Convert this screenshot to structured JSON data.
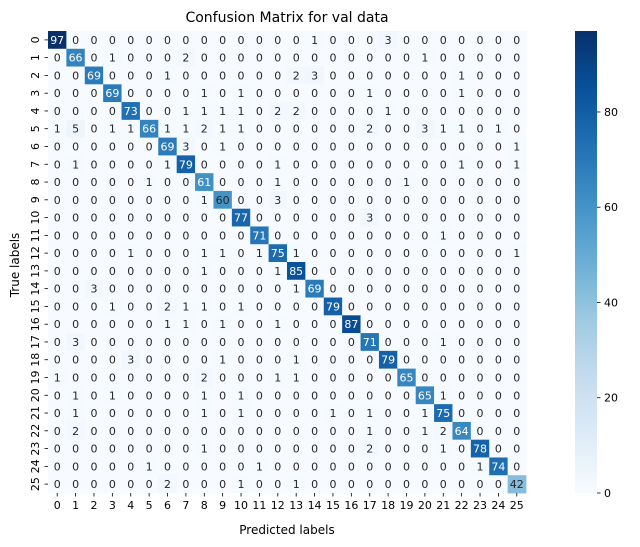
{
  "chart_data": {
    "type": "heatmap",
    "title": "Confusion Matrix for val data",
    "xlabel": "Predicted labels",
    "ylabel": "True labels",
    "x_categories": [
      "0",
      "1",
      "2",
      "3",
      "4",
      "5",
      "6",
      "7",
      "8",
      "9",
      "10",
      "11",
      "12",
      "13",
      "14",
      "15",
      "16",
      "17",
      "18",
      "19",
      "20",
      "21",
      "22",
      "23",
      "24",
      "25"
    ],
    "y_categories": [
      "0",
      "1",
      "2",
      "3",
      "4",
      "5",
      "6",
      "7",
      "8",
      "9",
      "10",
      "11",
      "12",
      "13",
      "14",
      "15",
      "16",
      "17",
      "18",
      "19",
      "20",
      "21",
      "22",
      "23",
      "24",
      "25"
    ],
    "values": [
      [
        97,
        0,
        0,
        0,
        0,
        0,
        0,
        0,
        0,
        0,
        0,
        0,
        0,
        0,
        1,
        0,
        0,
        0,
        3,
        0,
        0,
        0,
        0,
        0,
        0,
        0
      ],
      [
        0,
        66,
        0,
        1,
        0,
        0,
        0,
        2,
        0,
        0,
        0,
        0,
        0,
        0,
        0,
        0,
        0,
        0,
        0,
        0,
        1,
        0,
        0,
        0,
        0,
        0
      ],
      [
        0,
        0,
        69,
        0,
        0,
        0,
        1,
        0,
        0,
        0,
        0,
        0,
        0,
        2,
        3,
        0,
        0,
        0,
        0,
        0,
        0,
        0,
        1,
        0,
        0,
        0
      ],
      [
        0,
        0,
        0,
        69,
        0,
        0,
        0,
        0,
        1,
        0,
        1,
        0,
        0,
        0,
        0,
        0,
        0,
        1,
        0,
        0,
        0,
        0,
        1,
        0,
        0,
        0
      ],
      [
        0,
        0,
        0,
        0,
        73,
        0,
        0,
        1,
        1,
        1,
        1,
        0,
        2,
        2,
        0,
        0,
        0,
        0,
        1,
        0,
        0,
        0,
        0,
        0,
        0,
        0
      ],
      [
        1,
        5,
        0,
        1,
        1,
        66,
        1,
        1,
        2,
        1,
        1,
        0,
        0,
        0,
        0,
        0,
        0,
        2,
        0,
        0,
        3,
        1,
        1,
        0,
        1,
        0
      ],
      [
        0,
        0,
        0,
        0,
        0,
        0,
        69,
        3,
        0,
        1,
        0,
        0,
        0,
        0,
        0,
        0,
        0,
        0,
        0,
        0,
        0,
        0,
        0,
        0,
        0,
        1
      ],
      [
        0,
        1,
        0,
        0,
        0,
        0,
        1,
        79,
        0,
        0,
        0,
        0,
        1,
        0,
        0,
        0,
        0,
        0,
        0,
        0,
        0,
        0,
        1,
        0,
        0,
        1
      ],
      [
        0,
        0,
        0,
        0,
        0,
        1,
        0,
        0,
        61,
        0,
        0,
        0,
        1,
        0,
        0,
        0,
        0,
        0,
        0,
        1,
        0,
        0,
        0,
        0,
        0,
        0
      ],
      [
        0,
        0,
        0,
        0,
        0,
        0,
        0,
        0,
        1,
        60,
        0,
        0,
        3,
        0,
        0,
        0,
        0,
        0,
        0,
        0,
        0,
        0,
        0,
        0,
        0,
        0
      ],
      [
        0,
        0,
        0,
        0,
        0,
        0,
        0,
        0,
        0,
        0,
        77,
        0,
        0,
        0,
        0,
        0,
        0,
        3,
        0,
        0,
        0,
        0,
        0,
        0,
        0,
        0
      ],
      [
        0,
        0,
        0,
        0,
        0,
        0,
        0,
        0,
        0,
        0,
        0,
        71,
        0,
        0,
        0,
        0,
        0,
        0,
        0,
        0,
        0,
        1,
        0,
        0,
        0,
        0
      ],
      [
        0,
        0,
        0,
        0,
        1,
        0,
        0,
        0,
        1,
        1,
        0,
        1,
        75,
        1,
        0,
        0,
        0,
        0,
        0,
        0,
        0,
        0,
        0,
        0,
        0,
        1
      ],
      [
        0,
        0,
        0,
        0,
        0,
        0,
        0,
        0,
        1,
        0,
        0,
        0,
        1,
        85,
        0,
        0,
        0,
        0,
        0,
        0,
        0,
        0,
        0,
        0,
        0,
        0
      ],
      [
        0,
        0,
        3,
        0,
        0,
        0,
        0,
        0,
        0,
        0,
        0,
        0,
        0,
        1,
        69,
        0,
        0,
        0,
        0,
        0,
        0,
        0,
        0,
        0,
        0,
        0
      ],
      [
        0,
        0,
        0,
        1,
        0,
        0,
        2,
        1,
        1,
        0,
        1,
        0,
        0,
        0,
        0,
        79,
        0,
        0,
        0,
        0,
        0,
        0,
        0,
        0,
        0,
        0
      ],
      [
        0,
        0,
        0,
        0,
        0,
        0,
        1,
        1,
        0,
        1,
        0,
        0,
        1,
        0,
        0,
        0,
        87,
        0,
        0,
        0,
        0,
        0,
        0,
        0,
        0,
        0
      ],
      [
        0,
        3,
        0,
        0,
        0,
        0,
        0,
        0,
        0,
        0,
        0,
        0,
        0,
        0,
        0,
        0,
        0,
        71,
        0,
        0,
        0,
        1,
        0,
        0,
        0,
        0
      ],
      [
        0,
        0,
        0,
        0,
        3,
        0,
        0,
        0,
        0,
        1,
        0,
        0,
        0,
        1,
        0,
        0,
        0,
        0,
        79,
        0,
        0,
        0,
        0,
        0,
        0,
        0
      ],
      [
        1,
        0,
        0,
        0,
        0,
        0,
        0,
        0,
        2,
        0,
        0,
        0,
        1,
        1,
        0,
        0,
        0,
        0,
        0,
        65,
        0,
        0,
        0,
        0,
        0,
        0
      ],
      [
        0,
        1,
        0,
        1,
        0,
        0,
        0,
        0,
        1,
        0,
        1,
        0,
        0,
        0,
        0,
        0,
        0,
        0,
        0,
        0,
        65,
        1,
        0,
        0,
        0,
        0
      ],
      [
        0,
        1,
        0,
        0,
        0,
        0,
        0,
        0,
        1,
        0,
        1,
        0,
        0,
        0,
        0,
        1,
        0,
        1,
        0,
        0,
        1,
        75,
        0,
        0,
        0,
        0
      ],
      [
        0,
        2,
        0,
        0,
        0,
        0,
        0,
        0,
        0,
        0,
        0,
        0,
        0,
        0,
        0,
        0,
        0,
        1,
        0,
        0,
        1,
        2,
        64,
        0,
        0,
        0
      ],
      [
        0,
        0,
        0,
        0,
        0,
        0,
        0,
        0,
        1,
        0,
        0,
        0,
        0,
        0,
        0,
        0,
        0,
        2,
        0,
        0,
        0,
        1,
        0,
        78,
        0,
        0
      ],
      [
        0,
        0,
        0,
        0,
        0,
        1,
        0,
        0,
        0,
        0,
        0,
        1,
        0,
        0,
        0,
        0,
        0,
        0,
        0,
        0,
        0,
        0,
        0,
        1,
        74,
        0
      ],
      [
        0,
        0,
        0,
        0,
        0,
        0,
        2,
        0,
        0,
        0,
        1,
        0,
        0,
        1,
        0,
        0,
        0,
        0,
        0,
        0,
        0,
        0,
        0,
        0,
        0,
        42
      ]
    ],
    "colorscale": "Blues",
    "colorbar": {
      "min": 0,
      "max": 97,
      "ticks": [
        0,
        20,
        40,
        60,
        80
      ]
    }
  }
}
